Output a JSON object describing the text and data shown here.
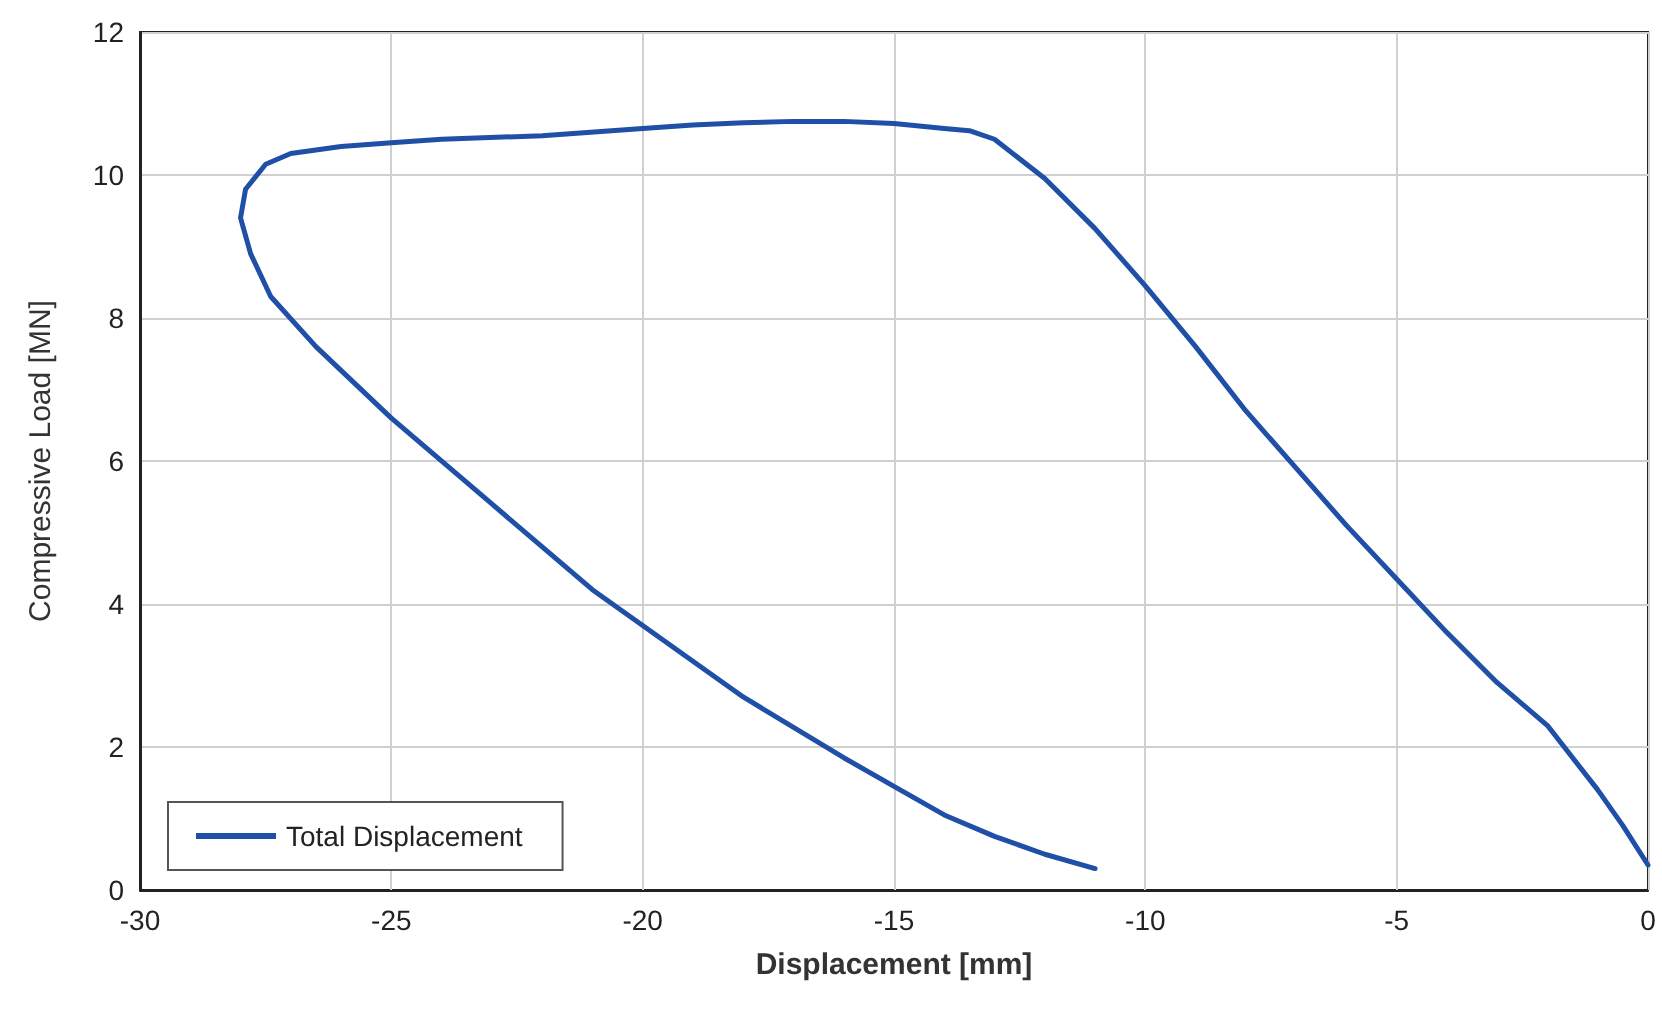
{
  "chart_data": {
    "type": "line",
    "xlabel": "Displacement [mm]",
    "ylabel": "Compressive Load [MN]",
    "xlim": [
      -30,
      0
    ],
    "xticks": [
      -30,
      -25,
      -20,
      -15,
      -10,
      -5,
      0
    ],
    "ylim": [
      0,
      12
    ],
    "yticks": [
      0,
      2,
      4,
      6,
      8,
      10,
      12
    ],
    "grid": true,
    "legend": "bottom left",
    "marker": "none",
    "line_style": "solid",
    "series": [
      {
        "name": "Total Displacement",
        "color": "#1f4fa6",
        "x": [
          0,
          -0.5,
          -1,
          -2,
          -3,
          -4,
          -5,
          -6,
          -7,
          -8,
          -9,
          -10,
          -11,
          -12,
          -13,
          -13.5,
          -14,
          -15,
          -16,
          -17,
          -18,
          -19,
          -20,
          -22,
          -24,
          -25,
          -26,
          -27,
          -27.5,
          -27.9,
          -28,
          -27.8,
          -27.4,
          -26.5,
          -25,
          -23,
          -21,
          -20,
          -18,
          -16,
          -15,
          -14,
          -13,
          -12,
          -11
        ],
        "values": [
          0.35,
          0.9,
          1.4,
          2.3,
          2.9,
          3.6,
          4.35,
          5.1,
          5.9,
          6.7,
          7.6,
          8.45,
          9.25,
          9.95,
          10.5,
          10.62,
          10.65,
          10.72,
          10.75,
          10.75,
          10.73,
          10.7,
          10.65,
          10.55,
          10.5,
          10.45,
          10.4,
          10.3,
          10.15,
          9.8,
          9.4,
          8.9,
          8.3,
          7.6,
          6.6,
          5.4,
          4.2,
          3.7,
          2.7,
          1.85,
          1.45,
          1.05,
          0.75,
          0.5,
          0.3
        ]
      }
    ]
  }
}
